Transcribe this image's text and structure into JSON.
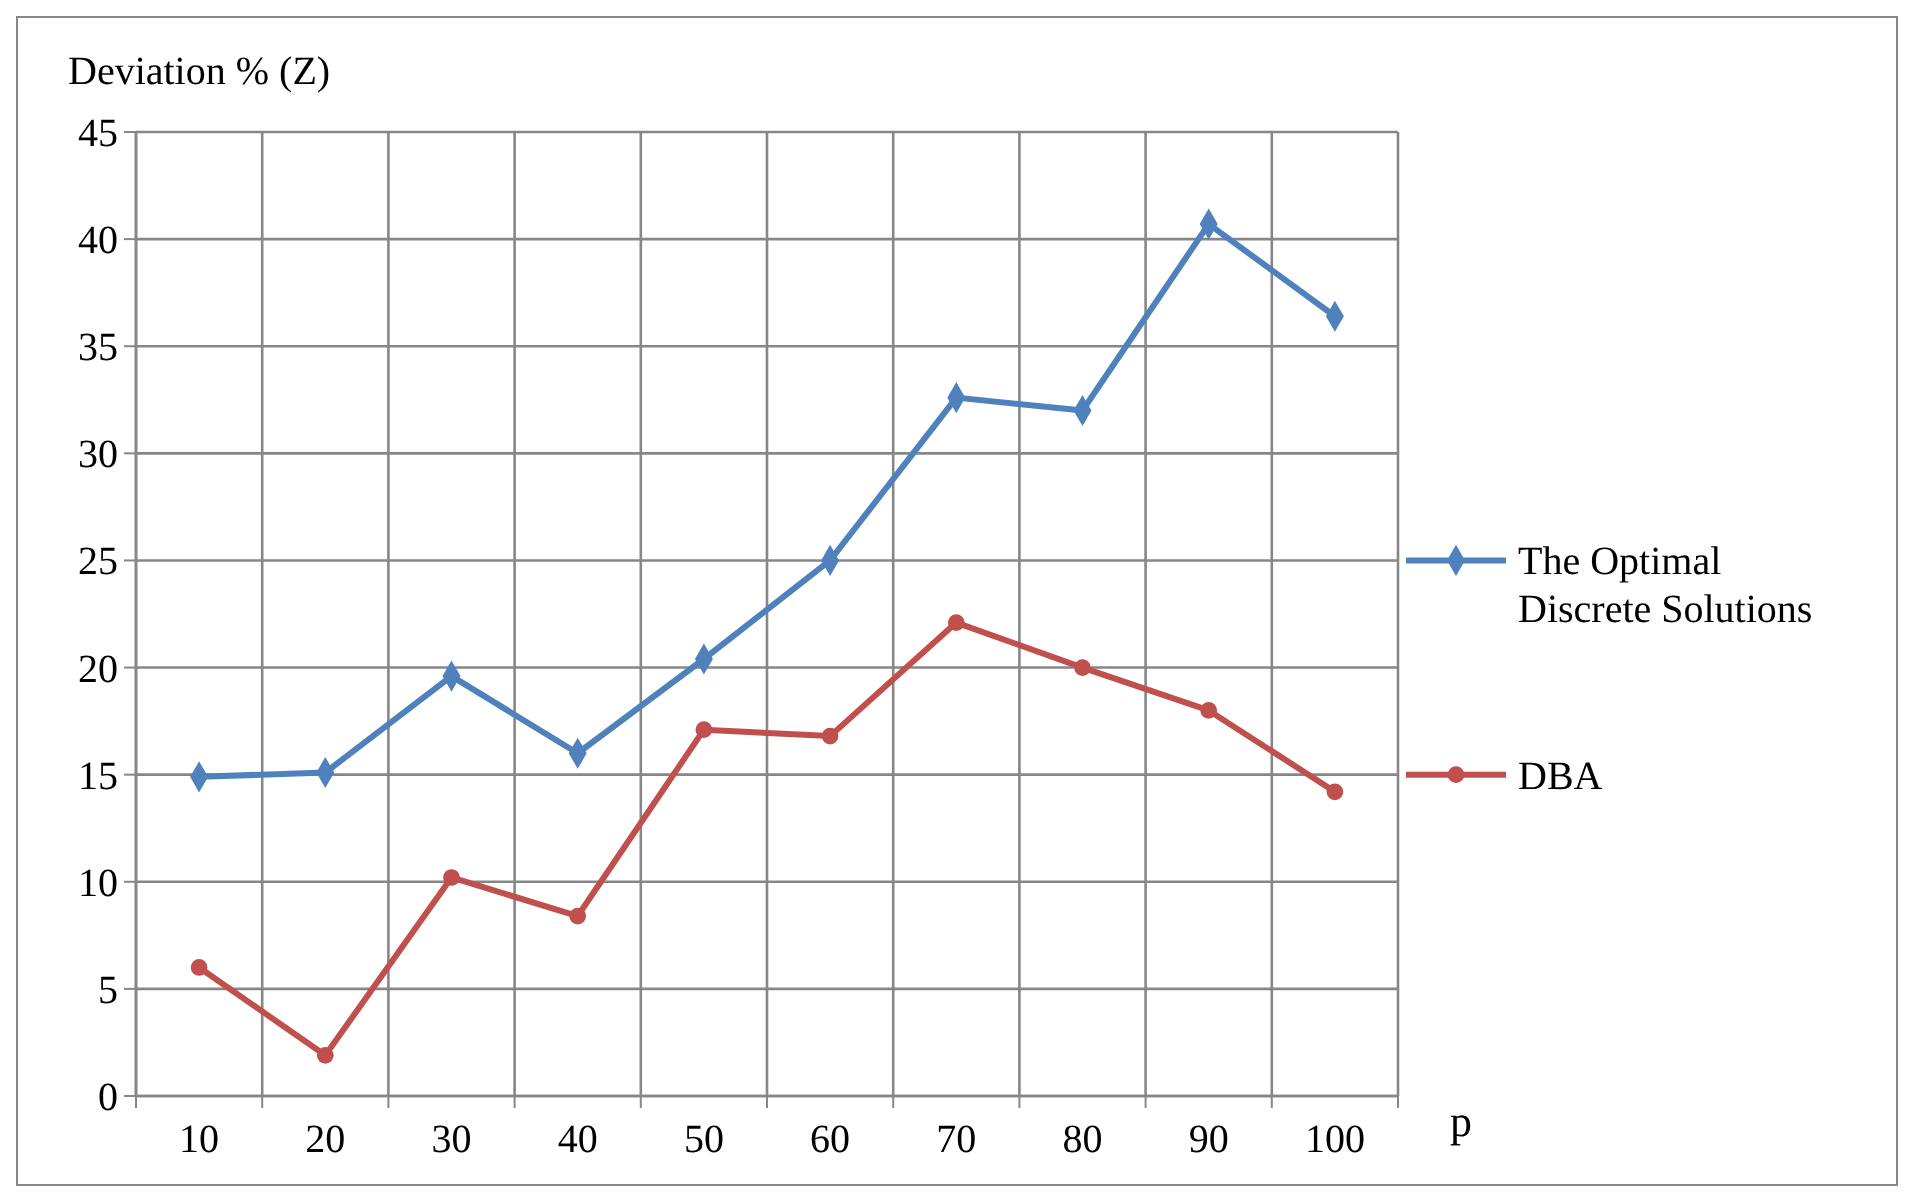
{
  "chart_data": {
    "type": "line",
    "ylabel": "Deviation % (Z)",
    "xlabel": "p",
    "categories": [
      "10",
      "20",
      "30",
      "40",
      "50",
      "60",
      "70",
      "80",
      "90",
      "100"
    ],
    "ylim": [
      0,
      45
    ],
    "yticks": [
      0,
      5,
      10,
      15,
      20,
      25,
      30,
      35,
      40,
      45
    ],
    "grid": true,
    "legend": "right",
    "line_style": "solid",
    "series": [
      {
        "name": "The Optimal Discrete Solutions",
        "color": "#4f81bd",
        "marker": "diamond",
        "values": [
          14.9,
          15.1,
          19.6,
          16.0,
          20.4,
          25.0,
          32.6,
          32.0,
          40.7,
          36.4
        ]
      },
      {
        "name": "DBA",
        "color": "#c0504d",
        "marker": "circle",
        "values": [
          6.0,
          1.9,
          10.2,
          8.4,
          17.1,
          16.8,
          22.1,
          20.0,
          18.0,
          14.2
        ]
      }
    ]
  }
}
